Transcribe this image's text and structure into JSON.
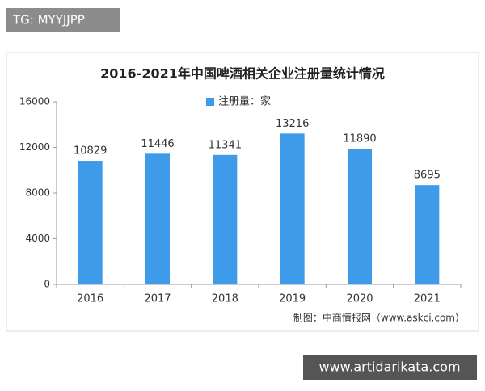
{
  "chart_data": {
    "type": "bar",
    "title": "2016-2021年中国啤酒相关企业注册量统计情况",
    "categories": [
      "2016",
      "2017",
      "2018",
      "2019",
      "2020",
      "2021"
    ],
    "series": [
      {
        "name": "注册量：家",
        "color": "#3d9be9",
        "values": [
          10829,
          11446,
          11341,
          13216,
          11890,
          8695
        ]
      }
    ],
    "ylim": [
      0,
      16000
    ],
    "yticks": [
      0,
      4000,
      8000,
      12000,
      16000
    ],
    "source": "制图：中商情报网（www.askci.com）"
  },
  "overlay": {
    "top_left": "TG: MYYJJPP",
    "bottom_right": "www.artidarikata.com"
  }
}
